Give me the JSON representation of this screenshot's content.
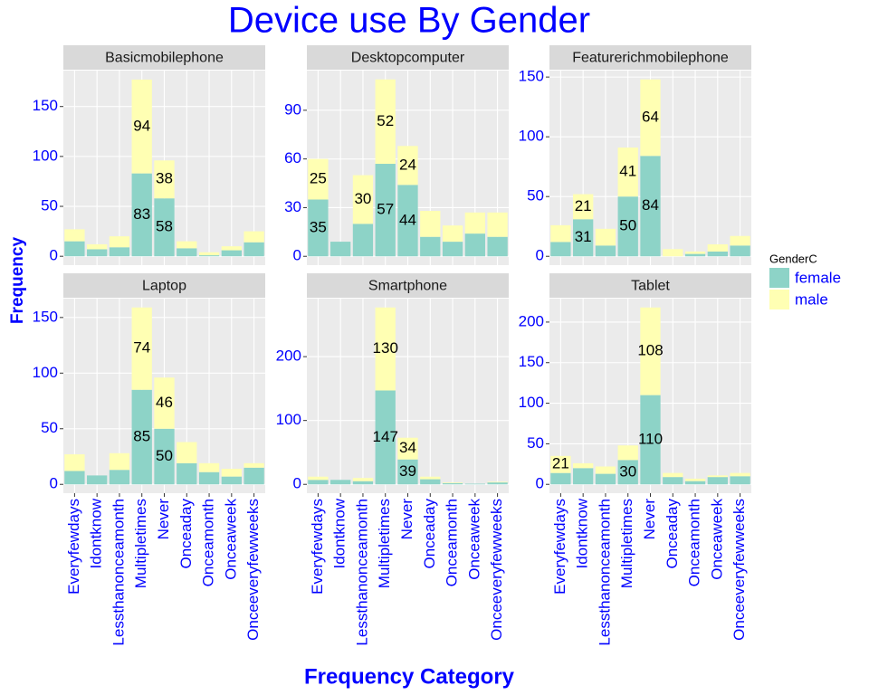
{
  "title": "Device use By Gender",
  "x_label": "Frequency Category",
  "y_label": "Frequency",
  "legend_title": "GenderC",
  "categories": [
    "Everyfewdays",
    "Idontknow",
    "Lessthanonceamonth",
    "Multipletimes",
    "Never",
    "Onceaday",
    "Onceamonth",
    "Onceaweek",
    "Onceeveryfewweeks"
  ],
  "chart_data": [
    {
      "type": "bar",
      "stacked": true,
      "title": "Basicmobilephone",
      "ylim": [
        -8.9,
        186
      ],
      "yticks": [
        0,
        50,
        100,
        150
      ],
      "series": [
        {
          "name": "female",
          "color": "#8dd3c7",
          "values": [
            15,
            7,
            9,
            83,
            58,
            8,
            1,
            6,
            14
          ],
          "value_labels": [
            null,
            null,
            null,
            "83",
            "58",
            null,
            null,
            null,
            null
          ]
        },
        {
          "name": "male",
          "color": "#ffffb3",
          "values": [
            12,
            5,
            11,
            94,
            38,
            7,
            3,
            4,
            11
          ],
          "value_labels": [
            null,
            null,
            null,
            "94",
            "38",
            null,
            null,
            null,
            null
          ]
        }
      ]
    },
    {
      "type": "bar",
      "stacked": true,
      "title": "Desktopcomputer",
      "ylim": [
        -5.45,
        114.45
      ],
      "yticks": [
        0,
        30,
        60,
        90
      ],
      "series": [
        {
          "name": "female",
          "color": "#8dd3c7",
          "values": [
            35,
            9,
            20,
            57,
            44,
            12,
            9,
            14,
            12
          ],
          "value_labels": [
            "35",
            null,
            null,
            "57",
            "44",
            null,
            null,
            null,
            null
          ]
        },
        {
          "name": "male",
          "color": "#ffffb3",
          "values": [
            25,
            0,
            30,
            52,
            24,
            16,
            10,
            13,
            15
          ],
          "value_labels": [
            "25",
            null,
            "30",
            "52",
            "24",
            null,
            null,
            null,
            null
          ]
        }
      ]
    },
    {
      "type": "bar",
      "stacked": true,
      "title": "Featurerichmobilephone",
      "ylim": [
        -7.4,
        155.4
      ],
      "yticks": [
        0,
        50,
        100,
        150
      ],
      "series": [
        {
          "name": "female",
          "color": "#8dd3c7",
          "values": [
            12,
            31,
            9,
            50,
            84,
            0,
            2,
            4,
            9
          ],
          "value_labels": [
            null,
            "31",
            null,
            "50",
            "84",
            null,
            null,
            null,
            null
          ]
        },
        {
          "name": "male",
          "color": "#ffffb3",
          "values": [
            14,
            21,
            14,
            41,
            64,
            6,
            2,
            6,
            8
          ],
          "value_labels": [
            null,
            "21",
            null,
            "41",
            "64",
            null,
            null,
            null,
            null
          ]
        }
      ]
    },
    {
      "type": "bar",
      "stacked": true,
      "title": "Laptop",
      "ylim": [
        -7.95,
        166.95
      ],
      "yticks": [
        0,
        50,
        100,
        150
      ],
      "series": [
        {
          "name": "female",
          "color": "#8dd3c7",
          "values": [
            12,
            8,
            13,
            85,
            50,
            19,
            11,
            7,
            15
          ],
          "value_labels": [
            null,
            null,
            null,
            "85",
            "50",
            null,
            null,
            null,
            null
          ]
        },
        {
          "name": "male",
          "color": "#ffffb3",
          "values": [
            15,
            0,
            15,
            74,
            46,
            19,
            8,
            7,
            4
          ],
          "value_labels": [
            null,
            null,
            null,
            "74",
            "46",
            null,
            null,
            null,
            null
          ]
        }
      ]
    },
    {
      "type": "bar",
      "stacked": true,
      "title": "Smartphone",
      "ylim": [
        -13.85,
        290.85
      ],
      "yticks": [
        0,
        100,
        200
      ],
      "series": [
        {
          "name": "female",
          "color": "#8dd3c7",
          "values": [
            7,
            7,
            5,
            147,
            39,
            8,
            2,
            1,
            3
          ],
          "value_labels": [
            null,
            null,
            null,
            "147",
            "39",
            null,
            null,
            null,
            null
          ]
        },
        {
          "name": "male",
          "color": "#ffffb3",
          "values": [
            5,
            0,
            5,
            130,
            34,
            4,
            1,
            0,
            1
          ],
          "value_labels": [
            null,
            null,
            null,
            "130",
            "34",
            null,
            null,
            null,
            null
          ]
        }
      ]
    },
    {
      "type": "bar",
      "stacked": true,
      "title": "Tablet",
      "ylim": [
        -10.9,
        228.9
      ],
      "yticks": [
        0,
        50,
        100,
        150,
        200
      ],
      "series": [
        {
          "name": "female",
          "color": "#8dd3c7",
          "values": [
            14,
            20,
            13,
            30,
            110,
            9,
            4,
            9,
            10
          ],
          "value_labels": [
            null,
            null,
            null,
            "30",
            "110",
            null,
            null,
            null,
            null
          ]
        },
        {
          "name": "male",
          "color": "#ffffb3",
          "values": [
            21,
            6,
            9,
            18,
            108,
            5,
            3,
            2,
            4
          ],
          "value_labels": [
            "21",
            null,
            null,
            null,
            "108",
            null,
            null,
            null,
            null
          ]
        }
      ]
    }
  ]
}
